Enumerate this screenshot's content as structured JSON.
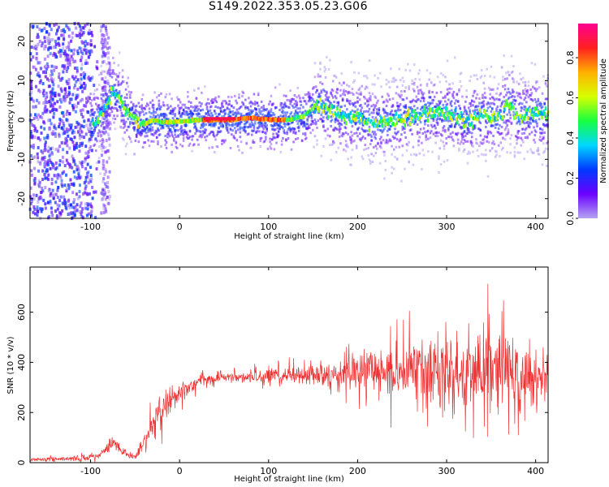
{
  "title": "S149.2022.353.05.23.G06",
  "chart_data": [
    {
      "type": "heatmap",
      "xlabel": "Height of straight line (km)",
      "ylabel": "Frequency (Hz)",
      "xlim": [
        -168,
        414
      ],
      "ylim": [
        -25,
        24.5
      ],
      "x_ticks": [
        -100,
        0,
        100,
        200,
        300,
        400
      ],
      "y_ticks": [
        -20,
        -10,
        0,
        10,
        20
      ],
      "colorbar": {
        "label": "Normalized spectral amplitude",
        "range": [
          0.0,
          0.97
        ],
        "ticks": [
          0.0,
          0.2,
          0.4,
          0.6,
          0.8
        ],
        "colormap": [
          "#b4a4f2",
          "#6a00ff",
          "#0038ff",
          "#00d8ff",
          "#18ff40",
          "#d8ff00",
          "#ffb000",
          "#ff2020",
          "#ff0090"
        ]
      },
      "dominant_frequency": {
        "x": [
          -95,
          -85,
          -75,
          -68,
          -60,
          -50,
          -40,
          -30,
          -20,
          0,
          20,
          40,
          60,
          80,
          100,
          120,
          140,
          150,
          158,
          170,
          200,
          220,
          240,
          260,
          280,
          300,
          320,
          340,
          360,
          370,
          380,
          400,
          414
        ],
        "y": [
          -1,
          3,
          7,
          6,
          2,
          0,
          -1,
          0,
          -0.5,
          -0.5,
          0,
          0,
          0,
          0.5,
          0,
          0,
          1,
          3,
          4,
          2,
          0.5,
          -1,
          0,
          1,
          2,
          1.5,
          0,
          1,
          0.5,
          4.5,
          1,
          1.5,
          2
        ]
      }
    },
    {
      "type": "line",
      "xlabel": "Height of straight line (km)",
      "ylabel": "SNR (10 * v/v)",
      "xlim": [
        -168,
        414
      ],
      "ylim": [
        0,
        780
      ],
      "x_ticks": [
        -100,
        0,
        100,
        200,
        300,
        400
      ],
      "y_ticks": [
        0,
        200,
        400,
        600
      ],
      "series_color": "#ee3030",
      "envelope": {
        "x": [
          -168,
          -120,
          -90,
          -75,
          -62,
          -50,
          -38,
          -30,
          -22,
          -15,
          -8,
          0,
          10,
          20,
          30,
          50,
          80,
          100,
          150,
          200,
          250,
          300,
          350,
          380,
          400,
          414
        ],
        "mean": [
          12,
          15,
          30,
          80,
          40,
          25,
          90,
          170,
          200,
          230,
          250,
          280,
          300,
          320,
          330,
          340,
          345,
          345,
          350,
          360,
          360,
          370,
          360,
          350,
          340,
          360
        ],
        "spread": [
          8,
          12,
          20,
          30,
          20,
          15,
          40,
          70,
          80,
          90,
          60,
          45,
          35,
          30,
          30,
          25,
          30,
          35,
          50,
          90,
          130,
          170,
          200,
          180,
          120,
          80
        ]
      }
    }
  ]
}
